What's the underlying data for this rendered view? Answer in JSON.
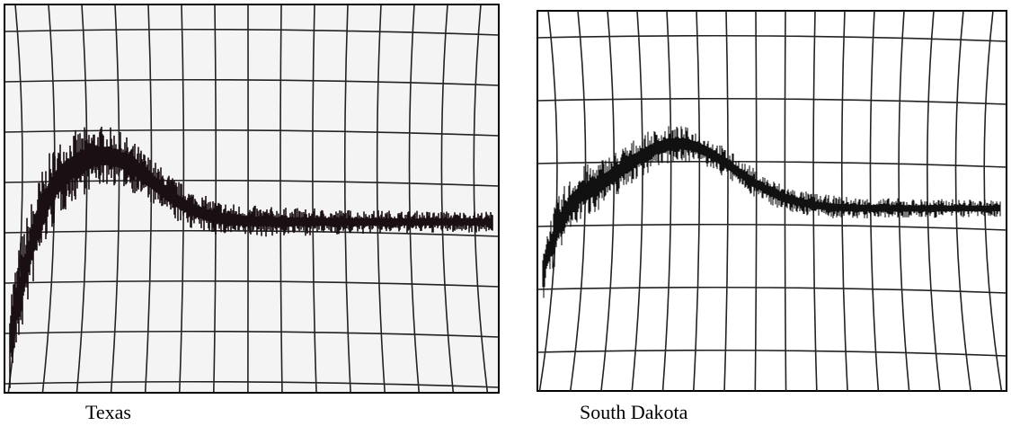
{
  "panels": [
    {
      "caption": "Texas"
    },
    {
      "caption": "South Dakota"
    }
  ]
}
